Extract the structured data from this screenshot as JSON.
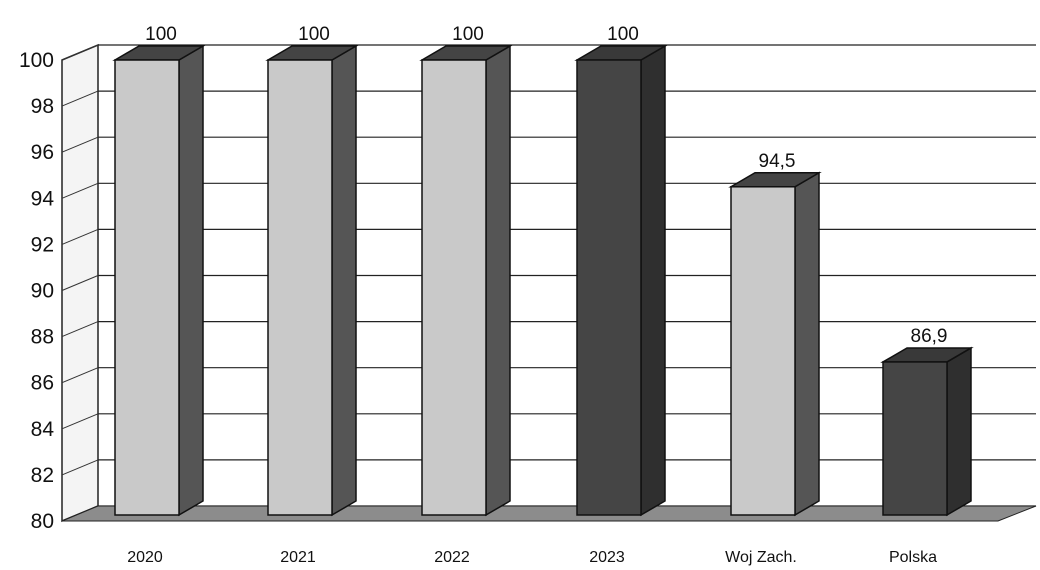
{
  "chart_data": {
    "type": "bar",
    "categories": [
      "2020",
      "2021",
      "2022",
      "2023",
      "Woj Zach.",
      "Polska"
    ],
    "values": [
      100,
      100,
      100,
      100,
      94.5,
      86.9
    ],
    "value_labels": [
      "100",
      "100",
      "100",
      "100",
      "94,5",
      "86,9"
    ],
    "yticks": [
      "80",
      "82",
      "84",
      "86",
      "88",
      "90",
      "92",
      "94",
      "96",
      "98",
      "100"
    ],
    "ylim": [
      80,
      100
    ],
    "grid": true,
    "style": "3d",
    "colors": {
      "light_bar": "#c9c9c9",
      "dark_bar": "#454545",
      "floor": "#8c8c8c"
    },
    "bar_tones": [
      "light",
      "light",
      "light",
      "dark",
      "light",
      "dark"
    ]
  }
}
